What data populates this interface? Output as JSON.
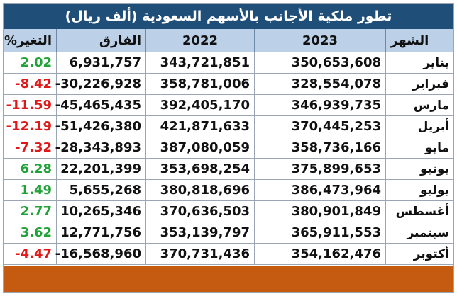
{
  "title": "تطور ملكية الأجانب بالأسهم السعودية (ألف ريال)",
  "headers": {
    "month": "الشهر",
    "y2023": "2023",
    "y2022": "2022",
    "diff": "الفارق",
    "pct": "التغير%"
  },
  "rows": [
    {
      "month": "يناير",
      "y2023": "350,653,608",
      "y2022": "343,721,851",
      "diff": "6,931,757",
      "pct": "2.02",
      "sign": "pos"
    },
    {
      "month": "فبراير",
      "y2023": "328,554,078",
      "y2022": "358,781,006",
      "diff": "-30,226,928",
      "pct": "-8.42",
      "sign": "neg"
    },
    {
      "month": "مارس",
      "y2023": "346,939,735",
      "y2022": "392,405,170",
      "diff": "-45,465,435",
      "pct": "-11.59",
      "sign": "neg"
    },
    {
      "month": "أبريل",
      "y2023": "370,445,253",
      "y2022": "421,871,633",
      "diff": "-51,426,380",
      "pct": "-12.19",
      "sign": "neg"
    },
    {
      "month": "مايو",
      "y2023": "358,736,166",
      "y2022": "387,080,059",
      "diff": "-28,343,893",
      "pct": "-7.32",
      "sign": "neg"
    },
    {
      "month": "يونيو",
      "y2023": "375,899,653",
      "y2022": "353,698,254",
      "diff": "22,201,399",
      "pct": "6.28",
      "sign": "pos"
    },
    {
      "month": "يوليو",
      "y2023": "386,473,964",
      "y2022": "380,818,696",
      "diff": "5,655,268",
      "pct": "1.49",
      "sign": "pos"
    },
    {
      "month": "أغسطس",
      "y2023": "380,901,849",
      "y2022": "370,636,503",
      "diff": "10,265,346",
      "pct": "2.77",
      "sign": "pos"
    },
    {
      "month": "سبتمبر",
      "y2023": "365,911,553",
      "y2022": "353,139,797",
      "diff": "12,771,756",
      "pct": "3.62",
      "sign": "pos"
    },
    {
      "month": "أكتوبر",
      "y2023": "354,162,476",
      "y2022": "370,731,436",
      "diff": "-16,568,960",
      "pct": "-4.47",
      "sign": "neg"
    }
  ],
  "colors": {
    "title_bg": "#1f4e79",
    "header_bg": "#bcd1e8",
    "positive": "#22a33a",
    "negative": "#e01818",
    "footer_bg": "#c55a11"
  }
}
